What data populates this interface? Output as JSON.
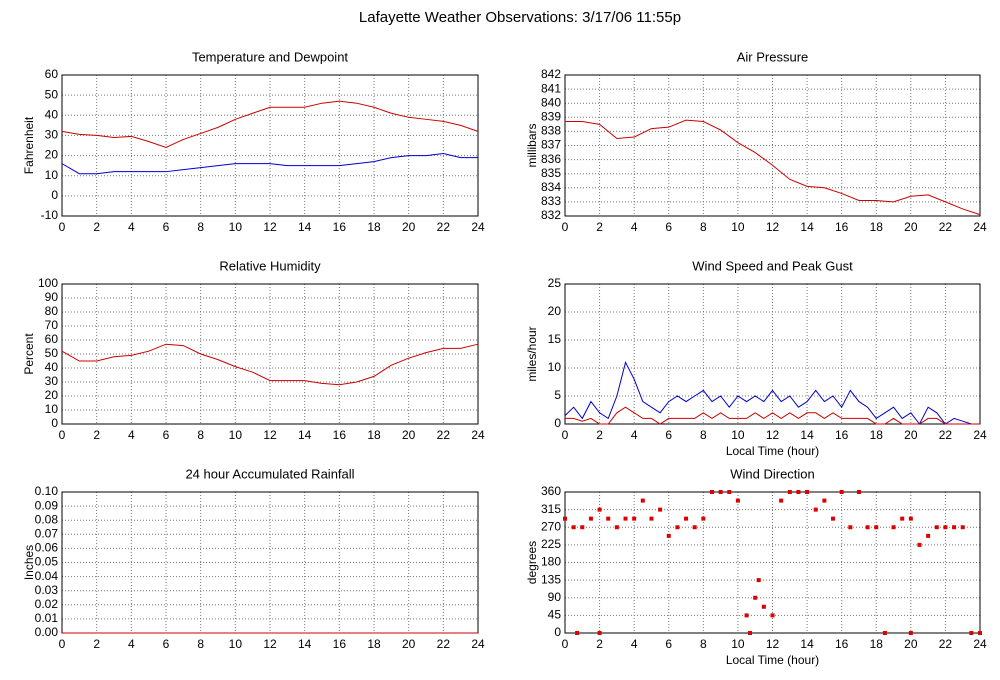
{
  "title": "Lafayette Weather Observations: 3/17/06 11:55p",
  "chart_data": [
    {
      "type": "line",
      "title": "Temperature and Dewpoint",
      "ylabel": "Fahrenheit",
      "x": [
        0,
        1,
        2,
        3,
        4,
        5,
        6,
        7,
        8,
        9,
        10,
        11,
        12,
        13,
        14,
        15,
        16,
        17,
        18,
        19,
        20,
        21,
        22,
        23,
        24
      ],
      "series": [
        {
          "color": "#cc0000",
          "values": [
            32,
            30.5,
            30,
            29,
            29.5,
            27,
            24,
            28,
            31,
            34,
            38,
            41,
            44,
            44,
            44,
            46,
            47,
            46,
            44,
            41,
            39,
            38,
            37,
            35,
            32
          ]
        },
        {
          "color": "#0000cc",
          "values": [
            16,
            11,
            11,
            12,
            12,
            12,
            12,
            13,
            14,
            15,
            16,
            16,
            16,
            15,
            15,
            15,
            15,
            16,
            17,
            19,
            20,
            20,
            21,
            19,
            19
          ]
        }
      ],
      "xlim": [
        0,
        24
      ],
      "xticks": [
        0,
        2,
        4,
        6,
        8,
        10,
        12,
        14,
        16,
        18,
        20,
        22,
        24
      ],
      "ylim": [
        -10,
        60
      ],
      "yticks": [
        -10,
        0,
        10,
        20,
        30,
        40,
        50,
        60
      ],
      "grid": true
    },
    {
      "type": "line",
      "title": "Air Pressure",
      "ylabel": "millibars",
      "x": [
        0,
        1,
        2,
        3,
        4,
        5,
        6,
        7,
        8,
        9,
        10,
        11,
        12,
        13,
        14,
        15,
        16,
        17,
        18,
        19,
        20,
        21,
        22,
        23,
        24
      ],
      "series": [
        {
          "color": "#cc0000",
          "values": [
            838.7,
            838.7,
            838.5,
            837.5,
            837.6,
            838.2,
            838.3,
            838.8,
            838.7,
            838.1,
            837.2,
            836.5,
            835.6,
            834.6,
            834.1,
            834.0,
            833.6,
            833.1,
            833.1,
            833.0,
            833.4,
            833.5,
            833.0,
            832.5,
            832.1
          ]
        }
      ],
      "xlim": [
        0,
        24
      ],
      "xticks": [
        0,
        2,
        4,
        6,
        8,
        10,
        12,
        14,
        16,
        18,
        20,
        22,
        24
      ],
      "ylim": [
        832,
        842
      ],
      "yticks": [
        832,
        833,
        834,
        835,
        836,
        837,
        838,
        839,
        840,
        841,
        842
      ],
      "grid": true
    },
    {
      "type": "line",
      "title": "Relative Humidity",
      "ylabel": "Percent",
      "x": [
        0,
        1,
        2,
        3,
        4,
        5,
        6,
        7,
        8,
        9,
        10,
        11,
        12,
        13,
        14,
        15,
        16,
        17,
        18,
        19,
        20,
        21,
        22,
        23,
        24
      ],
      "series": [
        {
          "color": "#cc0000",
          "values": [
            52,
            45,
            45,
            48,
            49,
            52,
            57,
            56,
            50,
            46,
            41,
            37,
            31,
            31,
            31,
            29,
            28,
            30,
            34,
            42,
            47,
            51,
            54,
            54,
            57
          ]
        }
      ],
      "xlim": [
        0,
        24
      ],
      "xticks": [
        0,
        2,
        4,
        6,
        8,
        10,
        12,
        14,
        16,
        18,
        20,
        22,
        24
      ],
      "ylim": [
        0,
        100
      ],
      "yticks": [
        0,
        10,
        20,
        30,
        40,
        50,
        60,
        70,
        80,
        90,
        100
      ],
      "grid": true
    },
    {
      "type": "line",
      "title": "Wind Speed and Peak Gust",
      "ylabel": "miles/hour",
      "xlabel": "Local Time (hour)",
      "x": [
        0,
        0.5,
        1,
        1.5,
        2,
        2.5,
        3,
        3.5,
        4,
        4.5,
        5,
        5.5,
        6,
        6.5,
        7,
        7.5,
        8,
        8.5,
        9,
        9.5,
        10,
        10.5,
        11,
        11.5,
        12,
        12.5,
        13,
        13.5,
        14,
        14.5,
        15,
        15.5,
        16,
        16.5,
        17,
        17.5,
        18,
        18.5,
        19,
        19.5,
        20,
        20.5,
        21,
        21.5,
        22,
        22.5,
        23,
        23.5,
        24
      ],
      "series": [
        {
          "color": "#0000cc",
          "values": [
            1.5,
            3,
            1,
            4,
            2,
            1,
            5,
            11,
            8,
            4,
            3,
            2,
            4,
            5,
            4,
            5,
            6,
            4,
            5,
            3,
            5,
            4,
            5,
            4,
            6,
            4,
            5,
            3,
            4,
            6,
            4,
            5,
            3,
            6,
            4,
            3,
            1,
            2,
            3,
            1,
            2,
            0,
            3,
            2,
            0,
            1,
            0.5,
            0,
            0
          ]
        },
        {
          "color": "#cc0000",
          "values": [
            1,
            1,
            0.5,
            1,
            0,
            0,
            2,
            3,
            2,
            1,
            1,
            0,
            1,
            1,
            1,
            1,
            2,
            1,
            2,
            1,
            1,
            1,
            2,
            1,
            2,
            1,
            2,
            1,
            2,
            2,
            1,
            2,
            1,
            1,
            1,
            1,
            0,
            0,
            1,
            0,
            0,
            0,
            1,
            1,
            0,
            0,
            0,
            0,
            0
          ]
        }
      ],
      "xlim": [
        0,
        24
      ],
      "xticks": [
        0,
        2,
        4,
        6,
        8,
        10,
        12,
        14,
        16,
        18,
        20,
        22,
        24
      ],
      "ylim": [
        0,
        25
      ],
      "yticks": [
        0,
        5,
        10,
        15,
        20,
        25
      ],
      "grid": true
    },
    {
      "type": "line",
      "title": "24 hour Accumulated Rainfall",
      "ylabel": "Inches",
      "x": [
        0,
        1,
        2,
        3,
        4,
        5,
        6,
        7,
        8,
        9,
        10,
        11,
        12,
        13,
        14,
        15,
        16,
        17,
        18,
        19,
        20,
        21,
        22,
        23,
        24
      ],
      "series": [
        {
          "color": "#cc0000",
          "values": [
            0,
            0,
            0,
            0,
            0,
            0,
            0,
            0,
            0,
            0,
            0,
            0,
            0,
            0,
            0,
            0,
            0,
            0,
            0,
            0,
            0,
            0,
            0,
            0,
            0
          ]
        }
      ],
      "xlim": [
        0,
        24
      ],
      "xticks": [
        0,
        2,
        4,
        6,
        8,
        10,
        12,
        14,
        16,
        18,
        20,
        22,
        24
      ],
      "ylim": [
        0,
        0.1
      ],
      "yticks": [
        {
          "value": 0,
          "label": "0.00"
        },
        0.01,
        0.02,
        0.03,
        0.04,
        0.05,
        0.06,
        0.07,
        0.08,
        0.09,
        {
          "value": 0.1,
          "label": "0.10"
        }
      ],
      "grid": true
    },
    {
      "type": "scatter",
      "title": "Wind Direction",
      "ylabel": "degrees",
      "xlabel": "Local Time (hour)",
      "x": [
        0,
        0.5,
        1,
        1.5,
        2,
        2.5,
        3,
        3.5,
        4,
        4.5,
        5,
        5.5,
        6,
        6.5,
        7,
        7.5,
        8,
        8.5,
        9,
        9.5,
        10,
        10.5,
        11,
        11.2,
        11.5,
        12,
        12.5,
        13,
        13.5,
        14,
        14.5,
        15,
        15.5,
        16,
        16.5,
        17,
        17.5,
        18,
        19,
        19.5,
        20,
        20.5,
        21,
        21.5,
        22,
        22.5,
        23,
        23.5,
        24,
        0.7,
        2,
        10.7,
        18.5,
        20
      ],
      "series": [
        {
          "color": "#dd0000",
          "values": [
            292,
            270,
            270,
            292,
            315,
            292,
            270,
            292,
            292,
            338,
            292,
            315,
            248,
            270,
            292,
            270,
            292,
            360,
            360,
            360,
            338,
            45,
            90,
            135,
            67,
            45,
            338,
            360,
            360,
            360,
            315,
            338,
            292,
            360,
            270,
            360,
            270,
            270,
            270,
            292,
            292,
            225,
            248,
            270,
            270,
            270,
            270,
            0,
            0,
            0,
            0,
            0,
            0,
            0
          ]
        }
      ],
      "xlim": [
        0,
        24
      ],
      "xticks": [
        0,
        2,
        4,
        6,
        8,
        10,
        12,
        14,
        16,
        18,
        20,
        22,
        24
      ],
      "ylim": [
        0,
        360
      ],
      "yticks": [
        0,
        45,
        90,
        135,
        180,
        225,
        270,
        315,
        360
      ],
      "grid": true
    }
  ]
}
